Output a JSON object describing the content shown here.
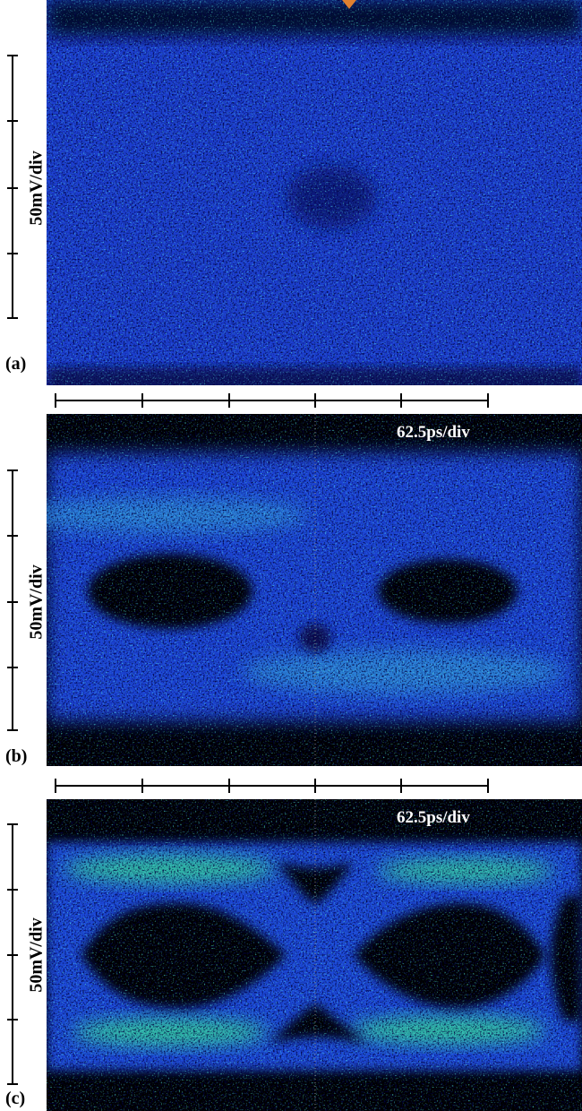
{
  "panels": [
    {
      "label": "(a)",
      "y_scale": "50mV/div"
    },
    {
      "label": "(b)",
      "y_scale": "50mV/div",
      "x_scale": "62.5ps/div"
    },
    {
      "label": "(c)",
      "y_scale": "50mV/div",
      "x_scale": "62.5ps/div"
    }
  ]
}
